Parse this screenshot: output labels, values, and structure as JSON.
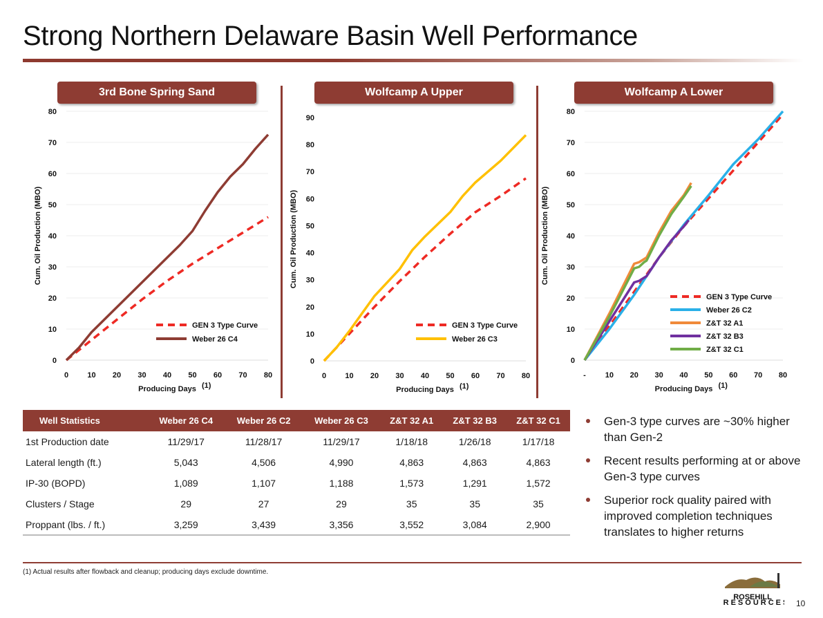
{
  "title": "Strong Northern Delaware Basin Well Performance",
  "colors": {
    "brand": "#8e3c33",
    "gen3": "#ee2a24",
    "weber_c4": "#8e3c33",
    "weber_c3": "#ffc000",
    "weber_c2": "#2ab0e8",
    "zt_a1": "#f08a3a",
    "zt_b3": "#7030a0",
    "zt_c1": "#70ad47"
  },
  "chart_data": [
    {
      "type": "line",
      "title": "3rd Bone Spring Sand",
      "xlabel": "Producing Days",
      "xlabel_sup": "(1)",
      "ylabel": "Cum. Oil Production (MBO)",
      "xlim": [
        0,
        80
      ],
      "ylim": [
        0,
        80
      ],
      "xticks": [
        "0",
        "10",
        "20",
        "30",
        "40",
        "50",
        "60",
        "70",
        "80"
      ],
      "yticks": [
        "0",
        "10",
        "20",
        "30",
        "40",
        "50",
        "60",
        "70",
        "80"
      ],
      "grid": true,
      "legend": "bottom-right",
      "series": [
        {
          "name": "GEN 3 Type Curve",
          "dashed": true,
          "color": "#ee2a24",
          "x": [
            0,
            10,
            20,
            30,
            40,
            50,
            60,
            70,
            80
          ],
          "y": [
            0,
            6.5,
            13,
            19.5,
            25.5,
            31,
            36,
            41,
            46
          ]
        },
        {
          "name": "Weber 26 C4",
          "color": "#8e3c33",
          "x": [
            0,
            5,
            10,
            15,
            20,
            25,
            30,
            35,
            40,
            45,
            50,
            55,
            60,
            65,
            70,
            75,
            80
          ],
          "y": [
            0,
            4,
            9,
            13,
            17,
            21,
            25,
            29,
            33,
            37,
            41.5,
            48,
            54,
            59,
            63,
            68,
            72.5
          ]
        }
      ]
    },
    {
      "type": "line",
      "title": "Wolfcamp A Upper",
      "xlabel": "Producing Days",
      "xlabel_sup": "(1)",
      "ylabel": "Cum. Oil Production (MBO)",
      "xlim": [
        0,
        80
      ],
      "ylim": [
        0,
        90
      ],
      "xticks": [
        "0",
        "10",
        "20",
        "30",
        "40",
        "50",
        "60",
        "70",
        "80"
      ],
      "yticks": [
        "0",
        "10",
        "20",
        "30",
        "40",
        "50",
        "60",
        "70",
        "80",
        "90"
      ],
      "grid": false,
      "legend": "bottom-right",
      "series": [
        {
          "name": "GEN 3 Type Curve",
          "dashed": true,
          "color": "#ee2a24",
          "x": [
            0,
            10,
            20,
            30,
            40,
            50,
            60,
            70,
            80
          ],
          "y": [
            0,
            10,
            20,
            29.5,
            38.5,
            47,
            55,
            61,
            67.5
          ]
        },
        {
          "name": "Weber 26 C3",
          "color": "#ffc000",
          "x": [
            0,
            5,
            10,
            20,
            30,
            35,
            40,
            50,
            55,
            60,
            70,
            80
          ],
          "y": [
            0,
            5,
            11,
            24,
            34,
            41,
            46,
            55,
            61,
            66,
            74,
            83.5
          ]
        }
      ]
    },
    {
      "type": "line",
      "title": "Wolfcamp A Lower",
      "xlabel": "Producing Days",
      "xlabel_sup": "(1)",
      "ylabel": "Cum. Oil Production (MBO)",
      "xlim": [
        0,
        80
      ],
      "ylim": [
        0,
        80
      ],
      "xticks": [
        "-",
        "10",
        "20",
        "30",
        "40",
        "50",
        "60",
        "70",
        "80"
      ],
      "yticks": [
        "0",
        "10",
        "20",
        "30",
        "40",
        "50",
        "60",
        "70",
        "80"
      ],
      "grid": true,
      "legend": "right",
      "series": [
        {
          "name": "GEN 3 Type Curve",
          "dashed": true,
          "color": "#ee2a24",
          "x": [
            0,
            10,
            20,
            30,
            40,
            50,
            60,
            70,
            80
          ],
          "y": [
            0,
            11,
            22,
            33,
            43,
            52,
            61,
            70,
            79
          ]
        },
        {
          "name": "Weber 26 C2",
          "color": "#2ab0e8",
          "x": [
            0,
            10,
            20,
            30,
            40,
            50,
            60,
            70,
            80
          ],
          "y": [
            0,
            10,
            21,
            33,
            43.5,
            53,
            63,
            71,
            80
          ]
        },
        {
          "name": "Z&T 32 A1",
          "color": "#f08a3a",
          "x": [
            0,
            10,
            20,
            22,
            24,
            25,
            30,
            35,
            40,
            43
          ],
          "y": [
            0,
            15,
            31,
            31.5,
            32.5,
            33,
            41,
            48,
            53,
            57
          ]
        },
        {
          "name": "Z&T 32 B3",
          "color": "#7030a0",
          "x": [
            0,
            10,
            20,
            22,
            25,
            30,
            35,
            40,
            42
          ],
          "y": [
            0,
            12.5,
            25,
            25.5,
            27,
            33,
            38.5,
            43,
            45
          ]
        },
        {
          "name": "Z&T 32 C1",
          "color": "#70ad47",
          "x": [
            0,
            10,
            20,
            22,
            24,
            25,
            30,
            35,
            40,
            43
          ],
          "y": [
            0,
            14,
            29.5,
            30,
            31.5,
            32,
            40,
            47,
            52.5,
            56
          ]
        }
      ]
    }
  ],
  "table": {
    "headers": [
      "Well Statistics",
      "Weber 26 C4",
      "Weber 26 C2",
      "Weber 26 C3",
      "Z&T 32 A1",
      "Z&T 32 B3",
      "Z&T 32 C1"
    ],
    "rows": [
      [
        "1st Production date",
        "11/29/17",
        "11/28/17",
        "11/29/17",
        "1/18/18",
        "1/26/18",
        "1/17/18"
      ],
      [
        "Lateral length (ft.)",
        "5,043",
        "4,506",
        "4,990",
        "4,863",
        "4,863",
        "4,863"
      ],
      [
        "IP-30 (BOPD)",
        "1,089",
        "1,107",
        "1,188",
        "1,573",
        "1,291",
        "1,572"
      ],
      [
        "Clusters / Stage",
        "29",
        "27",
        "29",
        "35",
        "35",
        "35"
      ],
      [
        "Proppant (lbs. / ft.)",
        "3,259",
        "3,439",
        "3,356",
        "3,552",
        "3,084",
        "2,900"
      ]
    ]
  },
  "bullets": [
    "Gen-3 type curves are ~30% higher than Gen-2",
    "Recent results performing at or above Gen-3 type curves",
    "Superior rock quality paired with improved completion techniques translates to higher returns"
  ],
  "footnote": "(1) Actual results after flowback and cleanup; producing days exclude downtime.",
  "logo": {
    "name": "ROSEHILL",
    "sub": "RESOURCES"
  },
  "page_number": "10"
}
